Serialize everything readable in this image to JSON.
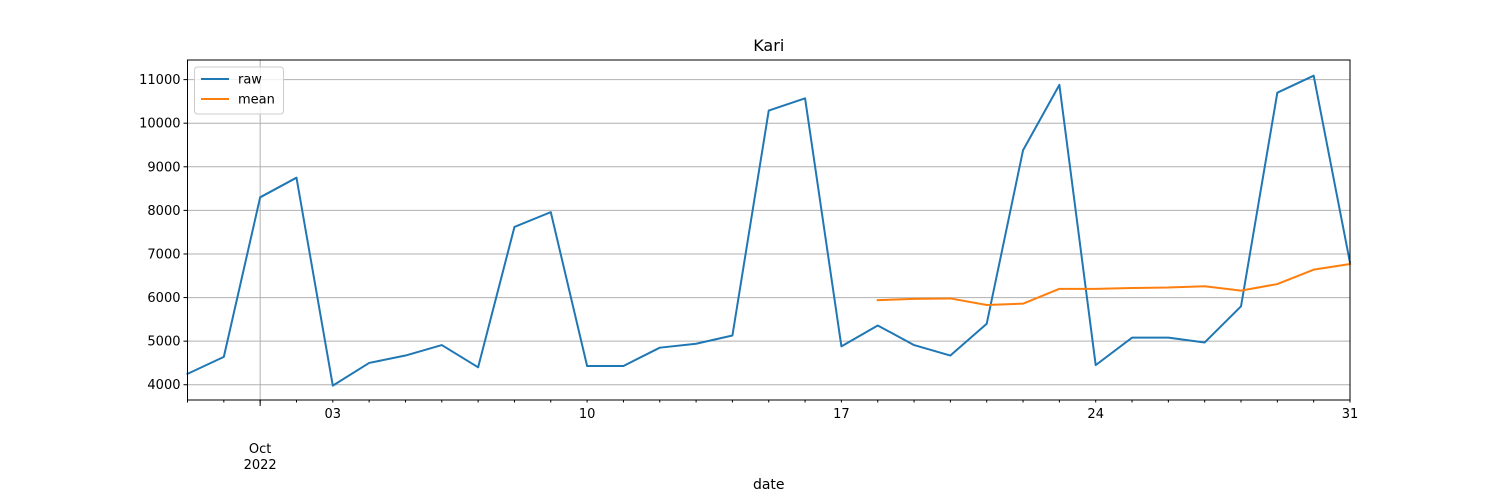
{
  "chart_data": {
    "type": "line",
    "title": "Kari",
    "xlabel": "date",
    "ylabel": "",
    "x_range": [
      "2022-09-29",
      "2022-10-31"
    ],
    "ylim": [
      3650,
      11450
    ],
    "grid": true,
    "legend_position": "top-left",
    "y_ticks": [
      4000,
      5000,
      6000,
      7000,
      8000,
      9000,
      10000,
      11000
    ],
    "x_major_ticks": [
      {
        "date": "2022-10-01",
        "label": "Oct",
        "sublabel": "2022"
      },
      {
        "date": "2022-10-03",
        "label": "03"
      },
      {
        "date": "2022-10-10",
        "label": "10"
      },
      {
        "date": "2022-10-17",
        "label": "17"
      },
      {
        "date": "2022-10-24",
        "label": "24"
      },
      {
        "date": "2022-10-31",
        "label": "31"
      }
    ],
    "x": [
      "2022-09-29",
      "2022-09-30",
      "2022-10-01",
      "2022-10-02",
      "2022-10-03",
      "2022-10-04",
      "2022-10-05",
      "2022-10-06",
      "2022-10-07",
      "2022-10-08",
      "2022-10-09",
      "2022-10-10",
      "2022-10-11",
      "2022-10-12",
      "2022-10-13",
      "2022-10-14",
      "2022-10-15",
      "2022-10-16",
      "2022-10-17",
      "2022-10-18",
      "2022-10-19",
      "2022-10-20",
      "2022-10-21",
      "2022-10-22",
      "2022-10-23",
      "2022-10-24",
      "2022-10-25",
      "2022-10-26",
      "2022-10-27",
      "2022-10-28",
      "2022-10-29",
      "2022-10-30",
      "2022-10-31"
    ],
    "series": [
      {
        "name": "raw",
        "color": "#1f77b4",
        "values": [
          4250,
          4640,
          8300,
          8750,
          3980,
          4500,
          4670,
          4910,
          4400,
          7620,
          7960,
          4430,
          4430,
          4850,
          4940,
          5130,
          10290,
          10570,
          4880,
          5360,
          4910,
          4670,
          5400,
          9380,
          10880,
          4450,
          5080,
          5080,
          4970,
          5800,
          10700,
          11090,
          6800
        ]
      },
      {
        "name": "mean",
        "color": "#ff7f0e",
        "values": [
          null,
          null,
          null,
          null,
          null,
          null,
          null,
          null,
          null,
          null,
          null,
          null,
          null,
          null,
          null,
          null,
          null,
          null,
          null,
          5940,
          5970,
          5980,
          5830,
          5860,
          6200,
          6200,
          6220,
          6230,
          6260,
          6160,
          6310,
          6640,
          6770
        ]
      }
    ]
  }
}
